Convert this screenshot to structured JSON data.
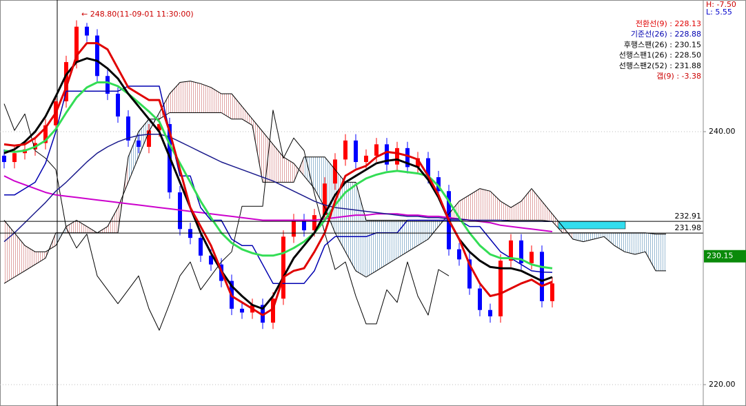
{
  "chart_data": {
    "type": "candlestick",
    "annotation": "← 248.80(11-09-01 11:30:00)",
    "header_stats": [
      {
        "text": "H: -7.50",
        "color": "#cc0000"
      },
      {
        "text": "L: 5.55",
        "color": "#0000cc"
      }
    ],
    "gap": {
      "text": "갭(9) : -3.38",
      "color": "#cc0000"
    },
    "xlim": [
      -0.4,
      67.6
    ],
    "ylim": [
      218.31,
      250.41
    ],
    "yticks": [
      {
        "value": 240,
        "label": "240.00"
      },
      {
        "value": 220,
        "label": "220.00"
      }
    ],
    "grid": true,
    "price_lines": [
      232.91,
      231.98
    ],
    "current_price": 230.15,
    "up_color": "#ff0000",
    "down_color": "#0000ff",
    "cloud_up_color": "#d98c8c",
    "cloud_down_color": "#7fa8c8",
    "x": [
      0,
      1,
      2,
      3,
      4,
      5,
      6,
      7,
      8,
      9,
      10,
      11,
      12,
      13,
      14,
      15,
      16,
      17,
      18,
      19,
      20,
      21,
      22,
      23,
      24,
      25,
      26,
      27,
      28,
      29,
      30,
      31,
      32,
      33,
      34,
      35,
      36,
      37,
      38,
      39,
      40,
      41,
      42,
      43,
      44,
      45,
      46,
      47,
      48,
      49,
      50,
      51,
      52,
      53,
      54,
      55,
      56,
      57,
      58,
      59,
      60,
      61,
      62,
      63,
      64
    ],
    "open": [
      238.1,
      237.6,
      238.3,
      238.6,
      239.1,
      240.5,
      242.4,
      245.5,
      248.3,
      247.6,
      244.4,
      243.0,
      241.2,
      239.3,
      238.8,
      240.1,
      240.6,
      235.2,
      232.3,
      231.6,
      230.2,
      229.5,
      228.2,
      226.0,
      225.7,
      226.3,
      224.9,
      226.8,
      231.7,
      233.0,
      232.2,
      233.4,
      235.9,
      237.8,
      239.3,
      237.6,
      238.1,
      239.0,
      237.4,
      238.7,
      237.2,
      237.9,
      236.4,
      235.3,
      230.7,
      229.9,
      227.6,
      225.9,
      225.4,
      229.8,
      231.4,
      229.6,
      230.5,
      226.6,
      null,
      null,
      null,
      null,
      null,
      null,
      null,
      null,
      null,
      null,
      null
    ],
    "high": [
      238.6,
      238.8,
      239.1,
      239.6,
      241.0,
      242.9,
      246.0,
      248.8,
      248.6,
      248.1,
      244.9,
      243.5,
      241.7,
      239.8,
      240.6,
      241.1,
      241.1,
      235.7,
      232.8,
      232.1,
      230.7,
      230.0,
      228.7,
      226.5,
      226.8,
      226.8,
      227.3,
      232.2,
      233.5,
      233.5,
      233.9,
      236.4,
      238.3,
      239.8,
      239.8,
      238.6,
      239.5,
      239.5,
      239.2,
      239.2,
      238.4,
      238.4,
      236.9,
      235.8,
      231.2,
      230.4,
      228.1,
      226.4,
      230.3,
      231.9,
      231.9,
      231.0,
      231.0,
      228.5,
      null,
      null,
      null,
      null,
      null,
      null,
      null,
      null,
      null,
      null,
      null
    ],
    "low": [
      237.1,
      237.1,
      237.8,
      238.1,
      238.6,
      240.0,
      241.9,
      245.0,
      247.1,
      243.9,
      242.5,
      240.7,
      238.8,
      238.3,
      238.3,
      239.6,
      234.7,
      231.8,
      231.1,
      229.7,
      229.0,
      227.7,
      225.5,
      225.2,
      225.2,
      224.4,
      224.4,
      226.3,
      231.2,
      231.7,
      231.7,
      232.9,
      235.4,
      237.3,
      237.1,
      237.1,
      237.6,
      236.9,
      236.9,
      236.7,
      236.7,
      235.9,
      234.8,
      230.2,
      229.4,
      227.1,
      225.4,
      224.9,
      224.9,
      229.3,
      229.1,
      229.1,
      226.1,
      226.1,
      null,
      null,
      null,
      null,
      null,
      null,
      null,
      null,
      null,
      null,
      null
    ],
    "close": [
      237.6,
      238.3,
      238.6,
      239.1,
      240.5,
      242.4,
      245.5,
      248.3,
      247.6,
      244.4,
      243.0,
      241.2,
      239.3,
      238.8,
      240.1,
      240.6,
      235.2,
      232.3,
      231.6,
      230.2,
      229.5,
      228.2,
      226.0,
      225.7,
      226.3,
      224.9,
      226.8,
      231.7,
      233.0,
      232.2,
      233.4,
      235.9,
      237.8,
      239.3,
      237.6,
      238.1,
      239.0,
      237.4,
      238.7,
      237.2,
      237.9,
      236.4,
      235.3,
      230.7,
      229.9,
      227.6,
      225.9,
      225.4,
      229.8,
      231.4,
      229.6,
      230.5,
      226.6,
      228.0,
      null,
      null,
      null,
      null,
      null,
      null,
      null,
      null,
      null,
      null,
      null
    ],
    "series": [
      {
        "name": "선행스팬1(26) : 228.50",
        "color": "#000000",
        "width": 1,
        "cloud": "top",
        "values": [
          233.0,
          232.0,
          231.0,
          230.5,
          230.5,
          231.0,
          232.5,
          233.0,
          232.5,
          232.0,
          232.5,
          234.0,
          236.0,
          238.0,
          240.0,
          241.5,
          243.0,
          243.9,
          244.0,
          243.8,
          243.5,
          243.0,
          243.0,
          242.0,
          241.0,
          240.0,
          239.0,
          238.0,
          237.5,
          236.5,
          235.5,
          234.0,
          232.0,
          230.5,
          229.0,
          228.5,
          229.0,
          229.5,
          230.0,
          230.5,
          231.0,
          231.5,
          232.5,
          233.5,
          234.5,
          235.0,
          235.5,
          235.3,
          234.5,
          234.0,
          234.5,
          235.5,
          234.5,
          233.5,
          232.5,
          231.5,
          231.3,
          231.5,
          231.7,
          231.0,
          230.5,
          230.3,
          230.5,
          229.0,
          229.0
        ]
      },
      {
        "name": "선행스팬2(52) : 231.88",
        "color": "#000000",
        "width": 1,
        "cloud": "bottom",
        "values": [
          228.0,
          228.5,
          229.0,
          229.5,
          230.0,
          232.0,
          232.0,
          232.0,
          232.0,
          232.0,
          232.0,
          232.0,
          238.0,
          240.0,
          241.0,
          241.0,
          241.5,
          241.5,
          241.5,
          241.5,
          241.5,
          241.5,
          241.0,
          241.0,
          240.5,
          236.0,
          236.0,
          236.0,
          236.0,
          238.0,
          238.0,
          238.0,
          237.0,
          236.0,
          236.0,
          233.0,
          233.0,
          233.0,
          233.0,
          233.0,
          233.0,
          233.0,
          233.0,
          233.0,
          233.0,
          233.0,
          233.0,
          233.0,
          233.0,
          233.0,
          233.0,
          233.0,
          233.0,
          232.9,
          232.0,
          232.0,
          232.0,
          232.0,
          232.0,
          232.0,
          232.0,
          232.0,
          232.0,
          231.9,
          231.9
        ]
      },
      {
        "name": "후행스팬(26) : 230.15",
        "color": "#000000",
        "width": 1,
        "values": [
          242.2,
          240.1,
          241.4,
          238.5,
          237.9,
          237.0,
          232.4,
          230.8,
          231.9,
          228.6,
          227.5,
          226.4,
          227.5,
          228.6,
          226.0,
          224.3,
          226.4,
          228.6,
          229.7,
          227.5,
          228.6,
          229.7,
          230.5,
          234.1,
          234.1,
          234.1,
          241.7,
          237.9,
          239.5,
          238.5,
          235.1,
          232.0,
          229.1,
          229.7,
          227.0,
          224.8,
          224.8,
          227.5,
          226.5,
          229.7,
          227.0,
          225.5,
          229.1,
          228.6,
          null,
          null,
          null,
          null,
          null,
          null,
          null,
          null,
          null,
          null,
          null,
          null,
          null,
          null,
          null,
          null,
          null,
          null,
          null,
          null,
          null
        ]
      },
      {
        "color": "#cc00cc",
        "width": 2,
        "values": [
          236.5,
          236.1,
          235.8,
          235.5,
          235.2,
          235.0,
          234.9,
          234.8,
          234.7,
          234.6,
          234.5,
          234.4,
          234.3,
          234.2,
          234.1,
          234.0,
          233.9,
          233.8,
          233.7,
          233.6,
          233.5,
          233.4,
          233.3,
          233.2,
          233.1,
          233.0,
          233.0,
          233.0,
          233.0,
          233.0,
          233.0,
          233.1,
          233.2,
          233.3,
          233.4,
          233.4,
          233.5,
          233.5,
          233.5,
          233.4,
          233.4,
          233.3,
          233.3,
          233.2,
          233.1,
          233.0,
          232.9,
          232.8,
          232.6,
          232.5,
          232.4,
          232.3,
          232.2,
          232.1,
          null,
          null,
          null,
          null,
          null,
          null,
          null,
          null,
          null,
          null,
          null
        ]
      },
      {
        "color": "#1a1a8c",
        "width": 1.5,
        "values": [
          231.3,
          232.0,
          232.8,
          233.6,
          234.4,
          235.3,
          236.0,
          236.8,
          237.6,
          238.3,
          238.8,
          239.2,
          239.5,
          239.7,
          239.8,
          239.8,
          239.6,
          239.2,
          238.8,
          238.4,
          238.0,
          237.6,
          237.3,
          237.0,
          236.7,
          236.4,
          236.1,
          235.7,
          235.3,
          234.9,
          234.5,
          234.2,
          234.0,
          233.9,
          233.8,
          233.7,
          233.6,
          233.5,
          233.4,
          233.3,
          233.3,
          233.2,
          233.2,
          233.1,
          233.1,
          233.0,
          233.0,
          233.0,
          233.0,
          232.9,
          232.9,
          232.9,
          232.9,
          232.9,
          null,
          null,
          null,
          null,
          null,
          null,
          null,
          null,
          null,
          null,
          null
        ]
      },
      {
        "name": "기준선(26) : 228.88",
        "color": "#0000b0",
        "width": 1.5,
        "values": [
          235.0,
          235.0,
          235.5,
          236.0,
          237.5,
          240.0,
          243.2,
          243.2,
          243.2,
          243.2,
          243.2,
          243.2,
          243.6,
          243.6,
          243.6,
          243.6,
          240.0,
          236.5,
          236.5,
          234.0,
          233.0,
          233.0,
          231.5,
          231.0,
          231.0,
          229.5,
          228.0,
          228.0,
          228.0,
          228.0,
          229.0,
          231.0,
          231.7,
          231.7,
          231.7,
          231.7,
          232.0,
          232.0,
          232.0,
          233.0,
          233.0,
          233.0,
          233.0,
          233.0,
          233.0,
          232.5,
          232.5,
          231.5,
          230.5,
          230.0,
          229.5,
          229.0,
          228.9,
          228.88,
          null,
          null,
          null,
          null,
          null,
          null,
          null,
          null,
          null,
          null,
          null
        ]
      },
      {
        "color": "#33dd55",
        "width": 3,
        "values": [
          238.5,
          238.4,
          238.5,
          238.8,
          239.3,
          240.2,
          241.5,
          242.7,
          243.5,
          243.9,
          243.9,
          243.6,
          243.0,
          242.3,
          241.6,
          240.8,
          239.0,
          237.5,
          236.0,
          234.5,
          233.2,
          232.0,
          231.2,
          230.7,
          230.4,
          230.2,
          230.2,
          230.4,
          230.8,
          231.3,
          232.0,
          233.0,
          234.2,
          235.2,
          235.8,
          236.3,
          236.6,
          236.8,
          236.9,
          236.8,
          236.7,
          236.5,
          235.7,
          234.5,
          233.2,
          232.0,
          231.0,
          230.3,
          230.0,
          230.0,
          229.9,
          229.5,
          229.3,
          229.2,
          null,
          null,
          null,
          null,
          null,
          null,
          null,
          null,
          null,
          null,
          null
        ]
      },
      {
        "color": "#000000",
        "width": 3,
        "values": [
          238.3,
          238.6,
          239.2,
          240.0,
          241.2,
          242.8,
          244.5,
          245.5,
          245.8,
          245.6,
          245.0,
          244.2,
          243.0,
          242.0,
          241.0,
          240.0,
          238.0,
          236.0,
          234.0,
          232.0,
          230.4,
          229.0,
          227.8,
          227.0,
          226.3,
          226.0,
          227.0,
          228.5,
          230.0,
          231.0,
          232.0,
          233.5,
          235.0,
          236.0,
          236.5,
          237.0,
          237.5,
          237.7,
          237.8,
          237.5,
          237.2,
          236.2,
          234.8,
          233.0,
          231.5,
          230.5,
          229.8,
          229.3,
          229.2,
          229.2,
          229.0,
          228.6,
          228.2,
          228.5,
          null,
          null,
          null,
          null,
          null,
          null,
          null,
          null,
          null,
          null,
          null
        ]
      },
      {
        "name": "전환선(9) : 228.13",
        "color": "#e00000",
        "width": 3,
        "values": [
          239.0,
          238.9,
          239.0,
          239.5,
          240.3,
          241.5,
          243.5,
          246.0,
          247.0,
          247.0,
          246.5,
          245.0,
          243.5,
          243.0,
          242.5,
          242.5,
          240.0,
          237.0,
          234.0,
          232.5,
          231.0,
          229.0,
          227.0,
          226.5,
          226.0,
          225.5,
          226.0,
          228.5,
          229.0,
          229.2,
          230.5,
          232.0,
          234.5,
          236.5,
          237.0,
          237.3,
          238.0,
          238.4,
          238.3,
          238.1,
          237.8,
          236.5,
          235.0,
          233.0,
          231.5,
          229.5,
          228.0,
          227.0,
          227.2,
          227.6,
          228.0,
          228.3,
          227.8,
          228.13,
          null,
          null,
          null,
          null,
          null,
          null,
          null,
          null,
          null,
          null,
          null
        ]
      }
    ]
  }
}
